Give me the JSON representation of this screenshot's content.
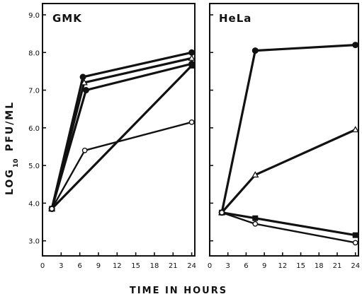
{
  "chart_data": {
    "xlabel": "TIME IN HOURS",
    "ylabel": {
      "prefix": "LOG",
      "subscript": "10",
      "suffix": "PFU/ML"
    },
    "colors": {
      "ink": "#111111",
      "background": "#ffffff"
    },
    "panels": [
      {
        "title": "GMK",
        "type": "line",
        "xlim": [
          0,
          24.5
        ],
        "ylim": [
          2.6,
          9.3
        ],
        "x_ticks": [
          0,
          3,
          6,
          9,
          12,
          15,
          18,
          21,
          24
        ],
        "y_ticks": [
          3.0,
          4.0,
          5.0,
          6.0,
          7.0,
          8.0,
          9.0
        ],
        "y_tick_labels": [
          "3.0",
          "4.0",
          "5.0",
          "6.0",
          "7.0",
          "8.0",
          "9.0"
        ],
        "series": [
          {
            "marker": "filled-circle",
            "x": [
              1.5,
              6.5,
              24
            ],
            "y": [
              3.85,
              7.35,
              8.0
            ]
          },
          {
            "marker": "open-triangle",
            "x": [
              1.5,
              6.7,
              24
            ],
            "y": [
              3.85,
              7.2,
              7.85
            ]
          },
          {
            "marker": "filled-circle",
            "x": [
              1.5,
              7.0,
              24
            ],
            "y": [
              3.85,
              7.0,
              7.7
            ]
          },
          {
            "marker": "filled-square",
            "x": [
              1.5,
              24
            ],
            "y": [
              3.85,
              7.65
            ]
          },
          {
            "marker": "open-circle",
            "x": [
              1.5,
              6.8,
              24
            ],
            "y": [
              3.85,
              5.4,
              6.15
            ]
          }
        ]
      },
      {
        "title": "HeLa",
        "type": "line",
        "xlim": [
          0,
          24.5
        ],
        "ylim": [
          2.6,
          9.3
        ],
        "x_ticks": [
          0,
          3,
          6,
          9,
          12,
          15,
          18,
          21,
          24
        ],
        "y_ticks": [
          3.0,
          4.0,
          5.0,
          6.0,
          7.0,
          8.0,
          9.0
        ],
        "series": [
          {
            "marker": "filled-circle",
            "x": [
              2,
              7.5,
              24
            ],
            "y": [
              3.75,
              8.05,
              8.2
            ]
          },
          {
            "marker": "open-triangle",
            "x": [
              2,
              7.5,
              24
            ],
            "y": [
              3.75,
              4.75,
              5.95
            ]
          },
          {
            "marker": "filled-square",
            "x": [
              2,
              7.5,
              24
            ],
            "y": [
              3.75,
              3.6,
              3.15
            ]
          },
          {
            "marker": "open-circle",
            "x": [
              2,
              7.5,
              24
            ],
            "y": [
              3.75,
              3.45,
              2.95
            ]
          }
        ]
      }
    ]
  }
}
